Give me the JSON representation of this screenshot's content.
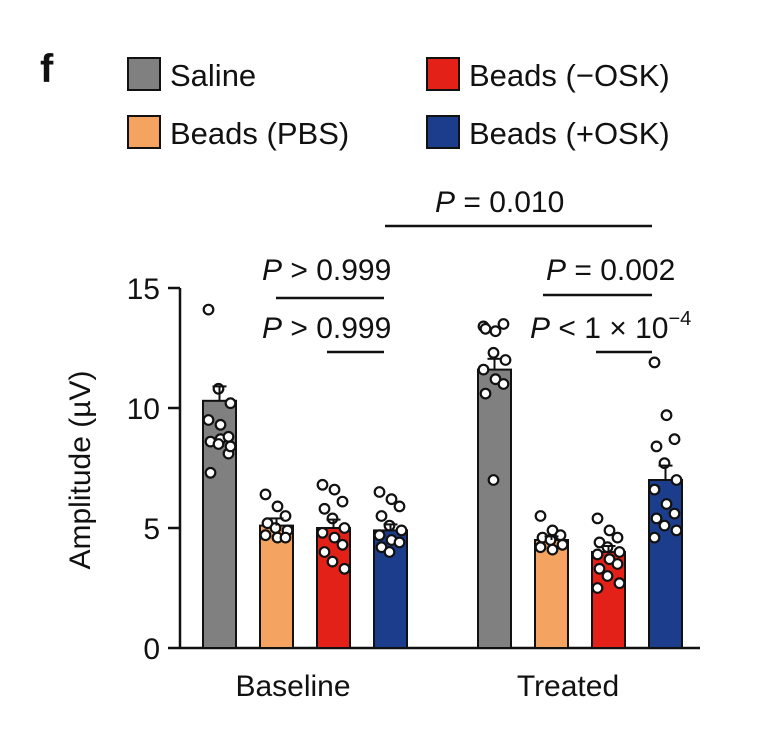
{
  "panel_label": "f",
  "chart_data": {
    "type": "bar",
    "ylabel": "Amplitude (µV)",
    "ylim": [
      0,
      15
    ],
    "yticks": [
      "0",
      "5",
      "10",
      "15"
    ],
    "categories": [
      "Baseline",
      "Treated"
    ],
    "legend_placement": "top",
    "series": [
      {
        "name": "Saline",
        "color": "#808080",
        "values": [
          10.3,
          11.6
        ],
        "sem": [
          0.6,
          0.45
        ],
        "points": [
          [
            14.1,
            8.7,
            8.1,
            7.3,
            10.8,
            10.2,
            9.5,
            9.3,
            8.8,
            8.6,
            8.5,
            8.4
          ],
          [
            13.4,
            13.2,
            13.5,
            13.3,
            12.3,
            12.0,
            11.6,
            11.2,
            11.0,
            10.6,
            7.0
          ]
        ]
      },
      {
        "name": "Beads (PBS)",
        "color": "#f4a460",
        "values": [
          5.1,
          4.5
        ],
        "sem": [
          0.3,
          0.15
        ],
        "points": [
          [
            6.4,
            5.9,
            5.5,
            5.2,
            5.0,
            4.9,
            4.7,
            4.6,
            4.6
          ],
          [
            5.5,
            4.9,
            4.7,
            4.6,
            4.5,
            4.3,
            4.2,
            4.1
          ]
        ]
      },
      {
        "name": "Beads (−OSK)",
        "color": "#e32119",
        "values": [
          5.0,
          4.0
        ],
        "sem": [
          0.35,
          0.25
        ],
        "points": [
          [
            6.8,
            6.6,
            6.1,
            5.8,
            5.4,
            5.0,
            4.8,
            4.6,
            4.3,
            4.0,
            3.6,
            3.3
          ],
          [
            5.4,
            4.9,
            4.6,
            4.4,
            4.2,
            4.0,
            3.9,
            3.7,
            3.5,
            3.3,
            3.0,
            2.7,
            2.5
          ]
        ]
      },
      {
        "name": "Beads (+OSK)",
        "color": "#1c3c8c",
        "values": [
          4.9,
          7.0
        ],
        "sem": [
          0.25,
          0.6
        ],
        "points": [
          [
            6.5,
            6.2,
            5.9,
            5.5,
            5.1,
            4.9,
            4.7,
            4.5,
            4.4,
            4.2,
            4.0
          ],
          [
            11.9,
            9.7,
            8.7,
            8.4,
            7.7,
            7.0,
            6.6,
            6.0,
            5.6,
            5.4,
            5.1,
            4.9,
            4.6
          ]
        ]
      }
    ],
    "annotations": [
      {
        "text": "P > 0.999",
        "italic": "P",
        "rest": " > 0.999",
        "compare": [
          "Baseline:Beads (PBS)",
          "Baseline:Beads (+OSK)"
        ]
      },
      {
        "text": "P > 0.999",
        "italic": "P",
        "rest": " > 0.999",
        "compare": [
          "Baseline:Beads (−OSK)",
          "Baseline:Beads (+OSK)"
        ]
      },
      {
        "text": "P = 0.010",
        "italic": "P",
        "rest": " = 0.010",
        "compare": [
          "Baseline:Beads (+OSK)",
          "Treated:Beads (+OSK)"
        ]
      },
      {
        "text": "P = 0.002",
        "italic": "P",
        "rest": " = 0.002",
        "compare": [
          "Treated:Beads (PBS)",
          "Treated:Beads (+OSK)"
        ]
      },
      {
        "text": "P < 1 × 10−4",
        "italic": "P",
        "rest": " < 1 × 10",
        "sup": "−4",
        "compare": [
          "Treated:Beads (−OSK)",
          "Treated:Beads (+OSK)"
        ]
      }
    ]
  }
}
